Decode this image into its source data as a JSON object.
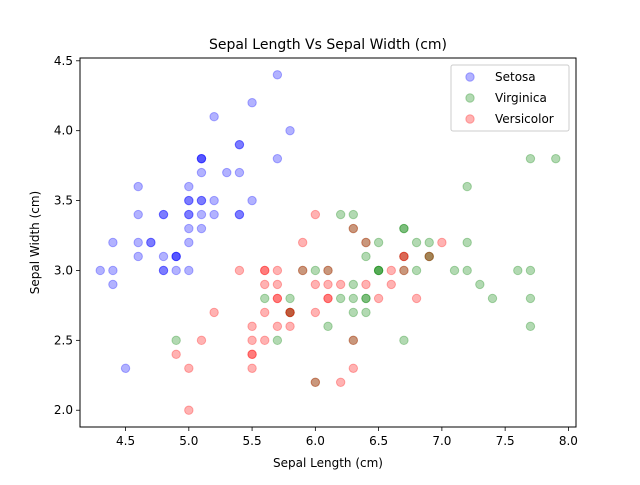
{
  "chart_data": {
    "type": "scatter",
    "title": "Sepal Length Vs Sepal Width (cm)",
    "xlabel": "Sepal Length (cm)",
    "ylabel": "Sepal Width (cm)",
    "xlim": [
      4.14,
      8.06
    ],
    "ylim": [
      1.88,
      4.52
    ],
    "xticks": [
      4.5,
      5.0,
      5.5,
      6.0,
      6.5,
      7.0,
      7.5,
      8.0
    ],
    "xtick_labels": [
      "4.5",
      "5.0",
      "5.5",
      "6.0",
      "6.5",
      "7.0",
      "7.5",
      "8.0"
    ],
    "yticks": [
      2.0,
      2.5,
      3.0,
      3.5,
      4.0,
      4.5
    ],
    "ytick_labels": [
      "2.0",
      "2.5",
      "3.0",
      "3.5",
      "4.0",
      "4.5"
    ],
    "grid": false,
    "legend_position": "top-right",
    "marker_alpha": 0.3,
    "series": [
      {
        "name": "Setosa",
        "color": "#0000ff",
        "points": [
          [
            5.1,
            3.5
          ],
          [
            4.9,
            3.0
          ],
          [
            4.7,
            3.2
          ],
          [
            4.6,
            3.1
          ],
          [
            5.0,
            3.6
          ],
          [
            5.4,
            3.9
          ],
          [
            4.6,
            3.4
          ],
          [
            5.0,
            3.4
          ],
          [
            4.4,
            2.9
          ],
          [
            4.9,
            3.1
          ],
          [
            5.4,
            3.7
          ],
          [
            4.8,
            3.4
          ],
          [
            4.8,
            3.0
          ],
          [
            4.3,
            3.0
          ],
          [
            5.8,
            4.0
          ],
          [
            5.7,
            4.4
          ],
          [
            5.4,
            3.9
          ],
          [
            5.1,
            3.5
          ],
          [
            5.7,
            3.8
          ],
          [
            5.1,
            3.8
          ],
          [
            5.4,
            3.4
          ],
          [
            5.1,
            3.7
          ],
          [
            4.6,
            3.6
          ],
          [
            5.1,
            3.3
          ],
          [
            4.8,
            3.4
          ],
          [
            5.0,
            3.0
          ],
          [
            5.0,
            3.4
          ],
          [
            5.2,
            3.5
          ],
          [
            5.2,
            3.4
          ],
          [
            4.7,
            3.2
          ],
          [
            4.8,
            3.1
          ],
          [
            5.4,
            3.4
          ],
          [
            5.2,
            4.1
          ],
          [
            5.5,
            4.2
          ],
          [
            4.9,
            3.1
          ],
          [
            5.0,
            3.2
          ],
          [
            5.5,
            3.5
          ],
          [
            4.9,
            3.1
          ],
          [
            4.4,
            3.0
          ],
          [
            5.1,
            3.4
          ],
          [
            5.0,
            3.5
          ],
          [
            4.5,
            2.3
          ],
          [
            4.4,
            3.2
          ],
          [
            5.0,
            3.5
          ],
          [
            5.1,
            3.8
          ],
          [
            4.8,
            3.0
          ],
          [
            5.1,
            3.8
          ],
          [
            4.6,
            3.2
          ],
          [
            5.3,
            3.7
          ],
          [
            5.0,
            3.3
          ]
        ]
      },
      {
        "name": "Virginica",
        "color": "#008000",
        "points": [
          [
            6.3,
            3.3
          ],
          [
            5.8,
            2.7
          ],
          [
            7.1,
            3.0
          ],
          [
            6.3,
            2.9
          ],
          [
            6.5,
            3.0
          ],
          [
            7.6,
            3.0
          ],
          [
            4.9,
            2.5
          ],
          [
            7.3,
            2.9
          ],
          [
            6.7,
            2.5
          ],
          [
            7.2,
            3.6
          ],
          [
            6.5,
            3.2
          ],
          [
            6.4,
            2.7
          ],
          [
            6.8,
            3.0
          ],
          [
            5.7,
            2.5
          ],
          [
            5.8,
            2.8
          ],
          [
            6.4,
            3.2
          ],
          [
            6.5,
            3.0
          ],
          [
            7.7,
            3.8
          ],
          [
            7.7,
            2.6
          ],
          [
            6.0,
            2.2
          ],
          [
            6.9,
            3.2
          ],
          [
            5.6,
            2.8
          ],
          [
            7.7,
            2.8
          ],
          [
            6.3,
            2.7
          ],
          [
            6.7,
            3.3
          ],
          [
            7.2,
            3.2
          ],
          [
            6.2,
            2.8
          ],
          [
            6.1,
            3.0
          ],
          [
            6.4,
            2.8
          ],
          [
            7.2,
            3.0
          ],
          [
            7.4,
            2.8
          ],
          [
            7.9,
            3.8
          ],
          [
            6.4,
            2.8
          ],
          [
            6.3,
            2.8
          ],
          [
            6.1,
            2.6
          ],
          [
            7.7,
            3.0
          ],
          [
            6.3,
            3.4
          ],
          [
            6.4,
            3.1
          ],
          [
            6.0,
            3.0
          ],
          [
            6.9,
            3.1
          ],
          [
            6.7,
            3.1
          ],
          [
            6.9,
            3.1
          ],
          [
            5.8,
            2.7
          ],
          [
            6.8,
            3.2
          ],
          [
            6.7,
            3.3
          ],
          [
            6.7,
            3.0
          ],
          [
            6.3,
            2.5
          ],
          [
            6.5,
            3.0
          ],
          [
            6.2,
            3.4
          ],
          [
            5.9,
            3.0
          ]
        ]
      },
      {
        "name": "Versicolor",
        "color": "#ff0000",
        "points": [
          [
            7.0,
            3.2
          ],
          [
            6.4,
            3.2
          ],
          [
            6.9,
            3.1
          ],
          [
            5.5,
            2.3
          ],
          [
            6.5,
            2.8
          ],
          [
            5.7,
            2.8
          ],
          [
            6.3,
            3.3
          ],
          [
            4.9,
            2.4
          ],
          [
            6.6,
            2.9
          ],
          [
            5.2,
            2.7
          ],
          [
            5.0,
            2.0
          ],
          [
            5.9,
            3.0
          ],
          [
            6.0,
            2.2
          ],
          [
            6.1,
            2.9
          ],
          [
            5.6,
            2.9
          ],
          [
            6.7,
            3.1
          ],
          [
            5.6,
            3.0
          ],
          [
            5.8,
            2.7
          ],
          [
            6.2,
            2.2
          ],
          [
            5.6,
            2.5
          ],
          [
            5.9,
            3.2
          ],
          [
            6.1,
            2.8
          ],
          [
            6.3,
            2.5
          ],
          [
            6.1,
            2.8
          ],
          [
            6.4,
            2.9
          ],
          [
            6.6,
            3.0
          ],
          [
            6.8,
            2.8
          ],
          [
            6.7,
            3.0
          ],
          [
            6.0,
            2.9
          ],
          [
            5.7,
            2.6
          ],
          [
            5.5,
            2.4
          ],
          [
            5.5,
            2.4
          ],
          [
            5.8,
            2.7
          ],
          [
            6.0,
            2.7
          ],
          [
            5.4,
            3.0
          ],
          [
            6.0,
            3.4
          ],
          [
            6.7,
            3.1
          ],
          [
            6.3,
            2.3
          ],
          [
            5.6,
            3.0
          ],
          [
            5.5,
            2.5
          ],
          [
            5.5,
            2.6
          ],
          [
            6.1,
            3.0
          ],
          [
            5.8,
            2.6
          ],
          [
            5.0,
            2.3
          ],
          [
            5.6,
            2.7
          ],
          [
            5.7,
            3.0
          ],
          [
            5.7,
            2.9
          ],
          [
            6.2,
            2.9
          ],
          [
            5.1,
            2.5
          ],
          [
            5.7,
            2.8
          ]
        ]
      }
    ]
  }
}
